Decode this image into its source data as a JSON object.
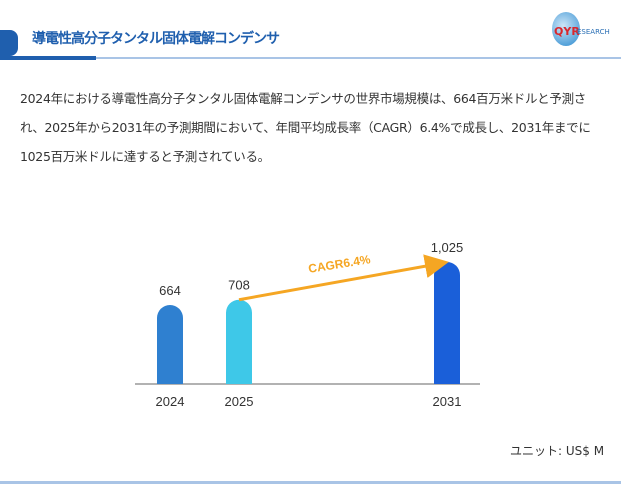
{
  "header": {
    "title": "導電性高分子タンタル固体電解コンデンサ",
    "logo_text": "QYRESEARCH"
  },
  "description": "2024年における導電性高分子タンタル固体電解コンデンサの世界市場規模は、664百万米ドルと予測され、2025年から2031年の予測期間において、年間平均成長率（CAGR）6.4%で成長し、2031年までに1025百万米ドルに達すると予測されている。",
  "unit": "ユニット: US$ M",
  "chart_data": {
    "type": "bar",
    "categories": [
      "2024",
      "2025",
      "2031"
    ],
    "values": [
      664,
      708,
      1025
    ],
    "data_labels": [
      "664",
      "708",
      "1,025"
    ],
    "colors": [
      "#2f80d0",
      "#3ec8e8",
      "#1a5fd9"
    ],
    "annotation": {
      "text": "CAGR6.4%",
      "from": "2025",
      "to": "2031",
      "color": "#f5a623"
    },
    "ylim": [
      0,
      1025
    ]
  }
}
